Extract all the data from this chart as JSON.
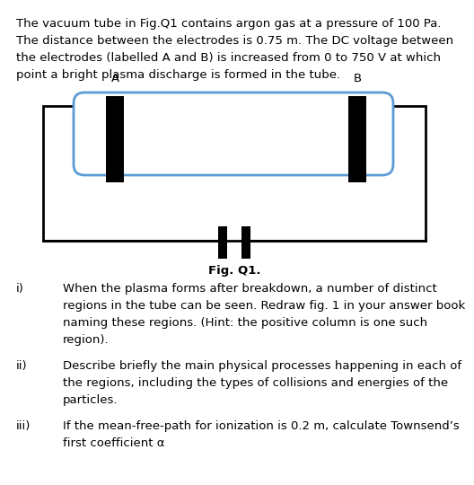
{
  "background_color": "#ffffff",
  "text_color": "#000000",
  "tube_color": "#5b9bd5",
  "outer_color": "#000000",
  "electrode_color": "#000000",
  "label_A": "A",
  "label_B": "B",
  "fig_label": "Fig. Q1.",
  "line1": "The vacuum tube in Fig.Q1 contains argon gas at a pressure of 100 Pa.",
  "line2": "The distance between the electrodes is 0.75 m. The DC voltage between",
  "line3": "the electrodes (labelled A and B) is increased from 0 to 750 V at which",
  "line4": "point a bright plasma discharge is formed in the tube.",
  "q1_label": "i)",
  "q1_line1": "When the plasma forms after breakdown, a number of distinct",
  "q1_line2": "regions in the tube can be seen. Redraw fig. 1 in your answer book",
  "q1_line3": "naming these regions. (Hint: the positive column is one such",
  "q1_line4": "region).",
  "q2_label": "ii)",
  "q2_line1": "Describe briefly the main physical processes happening in each of",
  "q2_line2": "the regions, including the types of collisions and energies of the",
  "q2_line3": "particles.",
  "q3_label": "iii)",
  "q3_line1": "If the mean-free-path for ionization is 0.2 m, calculate Townsend’s",
  "q3_line2": "first coefficient α",
  "fontsize": 9.5,
  "fontsize_bold": 9.5
}
